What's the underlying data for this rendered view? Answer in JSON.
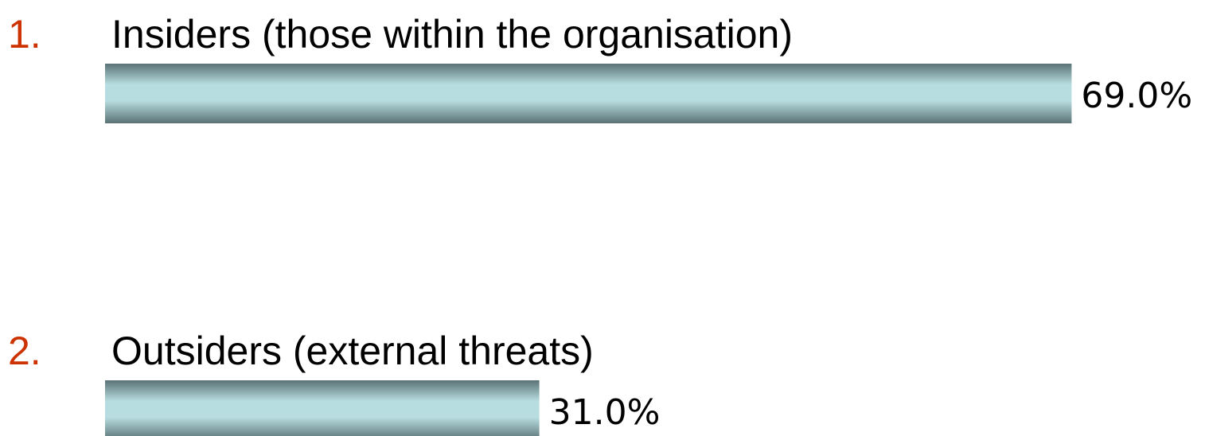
{
  "chart_data": {
    "type": "bar",
    "orientation": "horizontal",
    "item_numbers": [
      "1.",
      "2."
    ],
    "categories": [
      "Insiders (those within the organisation)",
      "Outsiders (external threats)"
    ],
    "values": [
      69.0,
      31.0
    ],
    "value_labels": [
      "69.0%",
      "31.0%"
    ],
    "color": "#b8dde0"
  }
}
